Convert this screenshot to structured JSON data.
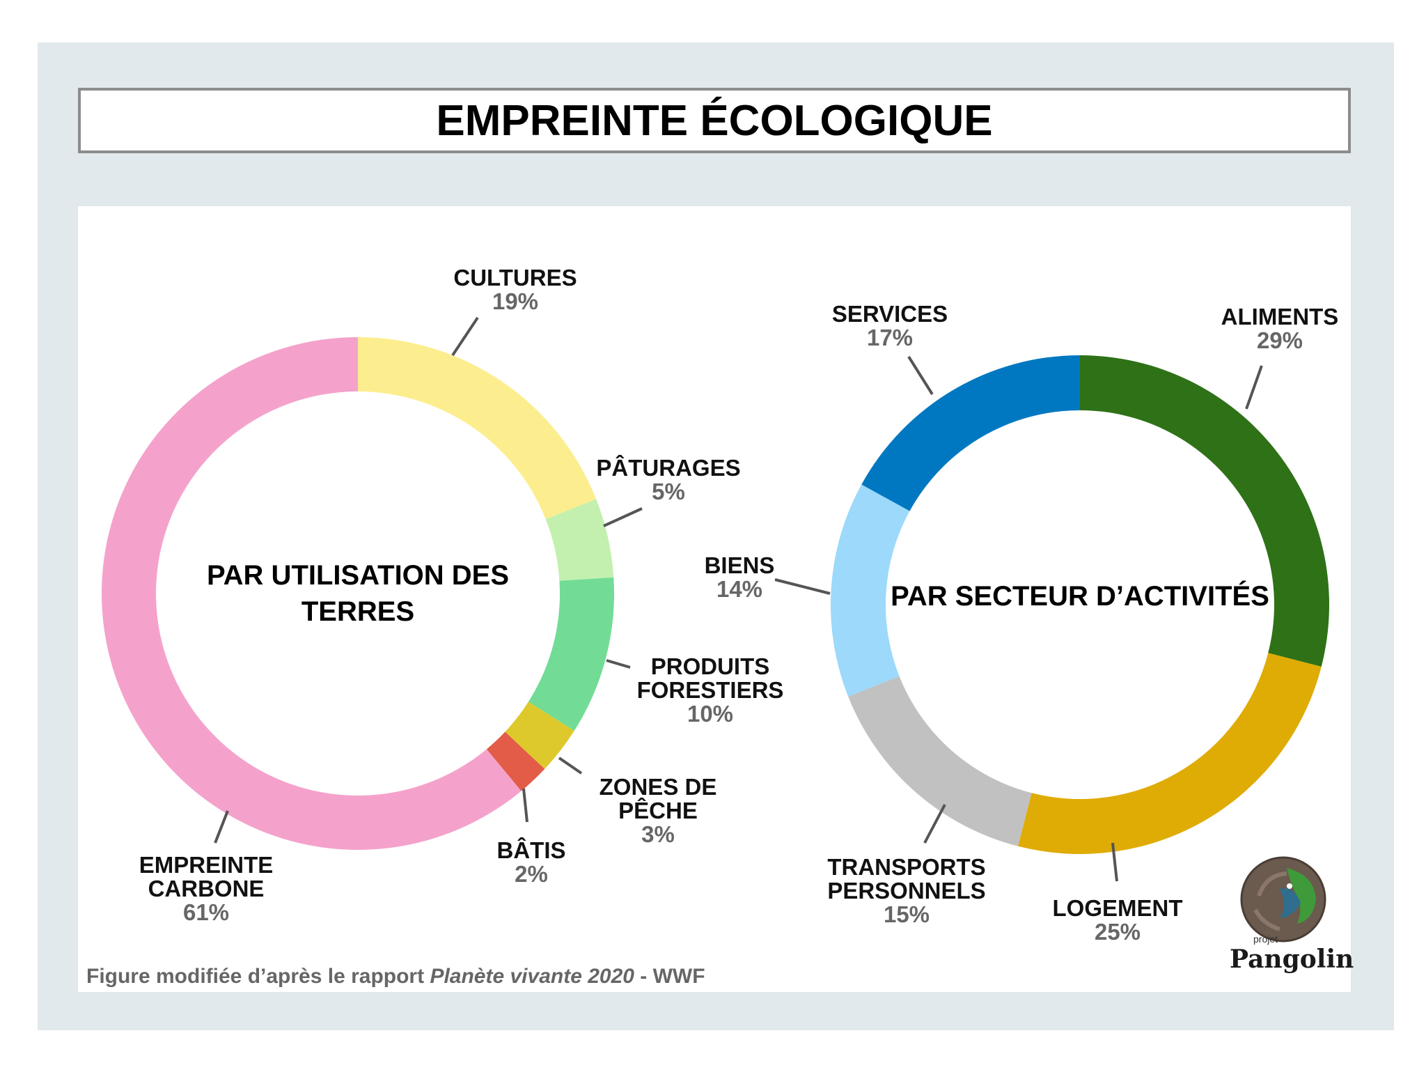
{
  "title": "EMPREINTE ÉCOLOGIQUE",
  "caption": {
    "prefix": "Figure modifiée d’après le rapport ",
    "italic": "Planète vivante 2020",
    "suffix": " - WWF"
  },
  "logo": {
    "small": "projet",
    "word": "Pangolin"
  },
  "chart_data": [
    {
      "type": "donut",
      "title": "PAR UTILISATION DES TERRES",
      "title_lines": [
        "PAR UTILISATION DES",
        "TERRES"
      ],
      "series": [
        {
          "name_lines": [
            "CULTURES"
          ],
          "pct_label": "19%",
          "value": 19,
          "color": "#fcee8e"
        },
        {
          "name_lines": [
            "PÂTURAGES"
          ],
          "pct_label": "5%",
          "value": 5,
          "color": "#c3f0ae"
        },
        {
          "name_lines": [
            "PRODUITS",
            "FORESTIERS"
          ],
          "pct_label": "10%",
          "value": 10,
          "color": "#72dc96"
        },
        {
          "name_lines": [
            "ZONES DE",
            "PÊCHE"
          ],
          "pct_label": "3%",
          "value": 3,
          "color": "#dec92c"
        },
        {
          "name_lines": [
            "BÂTIS"
          ],
          "pct_label": "2%",
          "value": 2,
          "color": "#e25c48"
        },
        {
          "name_lines": [
            "EMPREINTE",
            "CARBONE"
          ],
          "pct_label": "61%",
          "value": 61,
          "color": "#f4a2cb"
        }
      ]
    },
    {
      "type": "donut",
      "title": "PAR SECTEUR D’ACTIVITÉS",
      "title_lines": [
        "PAR SECTEUR D’ACTIVITÉS"
      ],
      "series": [
        {
          "name_lines": [
            "ALIMENTS"
          ],
          "pct_label": "29%",
          "value": 29,
          "color": "#2e7117"
        },
        {
          "name_lines": [
            "LOGEMENT"
          ],
          "pct_label": "25%",
          "value": 25,
          "color": "#dfab05"
        },
        {
          "name_lines": [
            "TRANSPORTS",
            "PERSONNELS"
          ],
          "pct_label": "15%",
          "value": 15,
          "color": "#c2c1c2"
        },
        {
          "name_lines": [
            "BIENS"
          ],
          "pct_label": "14%",
          "value": 14,
          "color": "#9cd9fb"
        },
        {
          "name_lines": [
            "SERVICES"
          ],
          "pct_label": "17%",
          "value": 17,
          "color": "#0078c1"
        }
      ]
    }
  ]
}
